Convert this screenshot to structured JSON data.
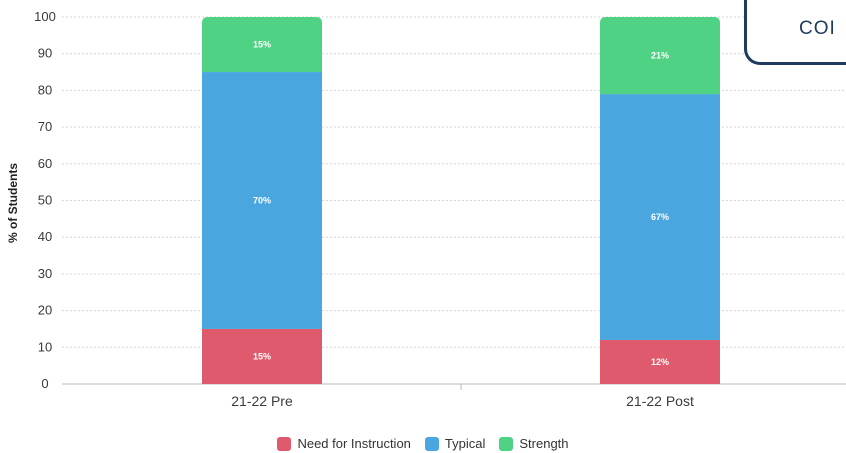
{
  "corner_text": "COI",
  "chart_data": {
    "type": "bar",
    "stacked": true,
    "categories": [
      "21-22 Pre",
      "21-22 Post"
    ],
    "series": [
      {
        "name": "Need for Instruction",
        "color": "#e05a6d",
        "values": [
          15,
          12
        ],
        "labels": [
          "15%",
          "12%"
        ]
      },
      {
        "name": "Typical",
        "color": "#4aa6de",
        "values": [
          70,
          67
        ],
        "labels": [
          "70%",
          "67%"
        ]
      },
      {
        "name": "Strength",
        "color": "#4fd283",
        "values": [
          15,
          21
        ],
        "labels": [
          "15%",
          "21%"
        ]
      }
    ],
    "ylabel": "% of Students",
    "xlabel": "",
    "ylim": [
      0,
      100
    ],
    "yticks": [
      0,
      10,
      20,
      30,
      40,
      50,
      60,
      70,
      80,
      90,
      100
    ],
    "grid": true,
    "legend_position": "bottom"
  }
}
